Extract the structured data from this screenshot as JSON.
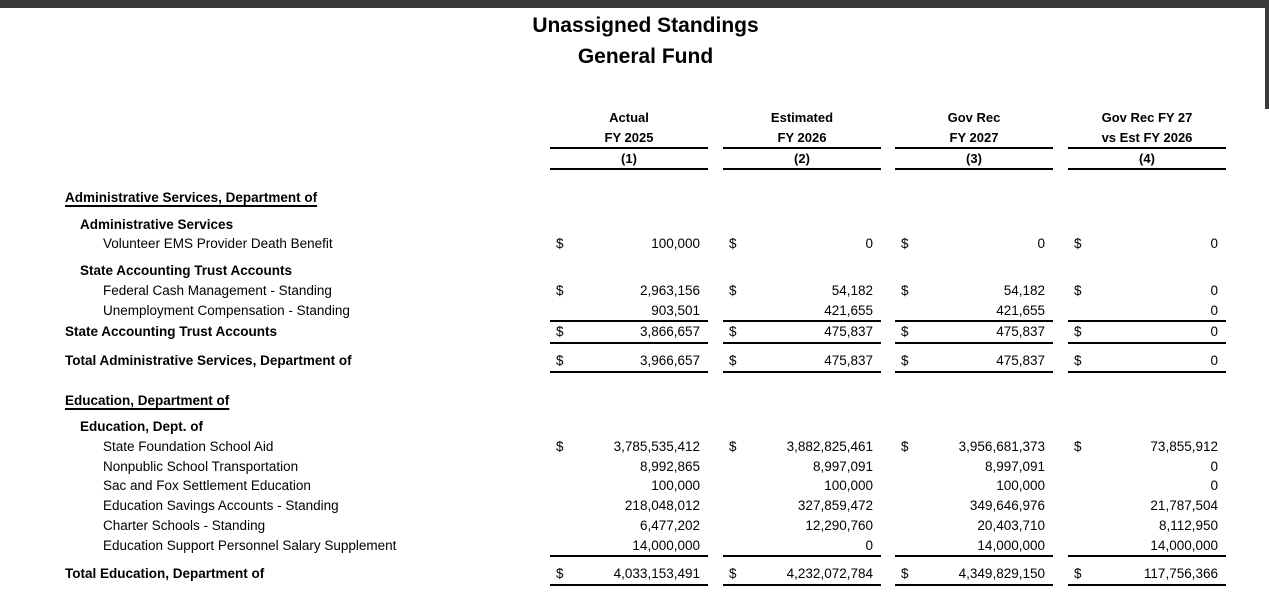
{
  "page": {
    "title_line1": "Unassigned Standings",
    "title_line2": "General Fund",
    "chrome_bar_color": "#3a3a3a",
    "background_color": "#ffffff",
    "text_color": "#000000"
  },
  "table": {
    "currency_symbol": "$",
    "columns": [
      {
        "line1": "Actual",
        "line2": "FY 2025",
        "num": "(1)"
      },
      {
        "line1": "Estimated",
        "line2": "FY 2026",
        "num": "(2)"
      },
      {
        "line1": "Gov Rec",
        "line2": "FY 2027",
        "num": "(3)"
      },
      {
        "line1": "Gov Rec FY 27",
        "line2": "vs Est FY 2026",
        "num": "(4)"
      }
    ],
    "rows": [
      {
        "type": "section",
        "label": "Administrative Services, Department of"
      },
      {
        "type": "subsection",
        "label": "Administrative Services"
      },
      {
        "type": "detail",
        "label": "Volunteer EMS Provider Death Benefit",
        "dollar": true,
        "values": [
          "100,000",
          "0",
          "0",
          "0"
        ]
      },
      {
        "type": "subsection",
        "label": "State Accounting Trust Accounts"
      },
      {
        "type": "detail",
        "label": "Federal Cash Management - Standing",
        "dollar": true,
        "values": [
          "2,963,156",
          "54,182",
          "54,182",
          "0"
        ]
      },
      {
        "type": "detail",
        "label": "Unemployment Compensation - Standing",
        "dollar": false,
        "rule_below": true,
        "values": [
          "903,501",
          "421,655",
          "421,655",
          "0"
        ]
      },
      {
        "type": "subtotal",
        "label": "State Accounting Trust Accounts",
        "dollar": true,
        "rule_below": true,
        "values": [
          "3,866,657",
          "475,837",
          "475,837",
          "0"
        ]
      },
      {
        "type": "total",
        "label": "Total Administrative Services, Department of",
        "dollar": true,
        "rule_below": true,
        "values": [
          "3,966,657",
          "475,837",
          "475,837",
          "0"
        ]
      },
      {
        "type": "section",
        "label": "Education, Department of"
      },
      {
        "type": "subsection",
        "label": "Education, Dept. of"
      },
      {
        "type": "detail",
        "label": "State Foundation School Aid",
        "dollar": true,
        "values": [
          "3,785,535,412",
          "3,882,825,461",
          "3,956,681,373",
          "73,855,912"
        ]
      },
      {
        "type": "detail",
        "label": "Nonpublic School Transportation",
        "dollar": false,
        "values": [
          "8,992,865",
          "8,997,091",
          "8,997,091",
          "0"
        ]
      },
      {
        "type": "detail",
        "label": "Sac and Fox Settlement Education",
        "dollar": false,
        "values": [
          "100,000",
          "100,000",
          "100,000",
          "0"
        ]
      },
      {
        "type": "detail",
        "label": "Education Savings Accounts - Standing",
        "dollar": false,
        "values": [
          "218,048,012",
          "327,859,472",
          "349,646,976",
          "21,787,504"
        ]
      },
      {
        "type": "detail",
        "label": "Charter Schools - Standing",
        "dollar": false,
        "values": [
          "6,477,202",
          "12,290,760",
          "20,403,710",
          "8,112,950"
        ]
      },
      {
        "type": "detail",
        "label": "Education Support Personnel Salary Supplement",
        "dollar": false,
        "rule_below": true,
        "values": [
          "14,000,000",
          "0",
          "14,000,000",
          "14,000,000"
        ]
      },
      {
        "type": "total",
        "label": "Total Education, Department of",
        "dollar": true,
        "rule_below": true,
        "values": [
          "4,033,153,491",
          "4,232,072,784",
          "4,349,829,150",
          "117,756,366"
        ]
      }
    ]
  }
}
